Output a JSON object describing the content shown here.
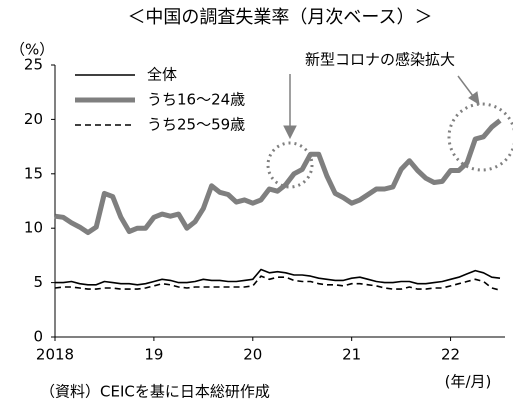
{
  "chart_data": {
    "type": "line",
    "title": "＜中国の調査失業率（月次ベース）＞",
    "y_unit_label": "（%）",
    "x_unit_label": "(年/月)",
    "annotation": "新型コロナの感染拡大",
    "source": "（資料）CEICを基に日本総研作成",
    "categories": [
      "2018",
      null,
      null,
      null,
      null,
      null,
      null,
      null,
      null,
      null,
      null,
      null,
      "19",
      null,
      null,
      null,
      null,
      null,
      null,
      null,
      null,
      null,
      null,
      null,
      "20",
      null,
      null,
      null,
      null,
      null,
      null,
      null,
      null,
      null,
      null,
      null,
      "21",
      null,
      null,
      null,
      null,
      null,
      null,
      null,
      null,
      null,
      null,
      null,
      "22",
      null,
      null,
      null,
      null,
      null,
      null
    ],
    "series": [
      {
        "name": "全体",
        "color": "#000000",
        "width": 1.6,
        "dash": false,
        "values": [
          5.0,
          5.0,
          5.1,
          4.9,
          4.8,
          4.8,
          5.1,
          5.0,
          4.9,
          4.9,
          4.8,
          4.9,
          5.1,
          5.3,
          5.2,
          5.0,
          5.0,
          5.1,
          5.3,
          5.2,
          5.2,
          5.1,
          5.1,
          5.2,
          5.3,
          6.2,
          5.9,
          6.0,
          5.9,
          5.7,
          5.7,
          5.6,
          5.4,
          5.3,
          5.2,
          5.2,
          5.4,
          5.5,
          5.3,
          5.1,
          5.0,
          5.0,
          5.1,
          5.1,
          4.9,
          4.9,
          5.0,
          5.1,
          5.3,
          5.5,
          5.8,
          6.1,
          5.9,
          5.5,
          5.4
        ]
      },
      {
        "name": "うち16～24歳",
        "color": "#7f7f7f",
        "width": 5,
        "dash": false,
        "values": [
          11.1,
          11.0,
          10.5,
          10.1,
          9.6,
          10.1,
          13.2,
          12.9,
          11.0,
          9.7,
          10.0,
          10.0,
          11.0,
          11.3,
          11.1,
          11.3,
          10.0,
          10.6,
          11.8,
          13.9,
          13.3,
          13.1,
          12.4,
          12.6,
          12.3,
          12.6,
          13.6,
          13.4,
          14.0,
          15.0,
          15.4,
          16.8,
          16.8,
          14.8,
          13.2,
          12.8,
          12.3,
          12.6,
          13.1,
          13.6,
          13.6,
          13.8,
          15.4,
          16.2,
          15.3,
          14.6,
          14.2,
          14.3,
          15.3,
          15.3,
          16.0,
          18.2,
          18.4,
          19.3,
          19.9
        ]
      },
      {
        "name": "うち25～59歳",
        "color": "#000000",
        "width": 1.6,
        "dash": true,
        "values": [
          4.5,
          4.6,
          4.6,
          4.5,
          4.4,
          4.4,
          4.5,
          4.5,
          4.4,
          4.4,
          4.4,
          4.5,
          4.7,
          4.9,
          4.8,
          4.6,
          4.5,
          4.6,
          4.6,
          4.6,
          4.6,
          4.6,
          4.6,
          4.6,
          4.7,
          5.6,
          5.3,
          5.5,
          5.5,
          5.2,
          5.1,
          5.1,
          4.9,
          4.8,
          4.8,
          4.7,
          4.9,
          4.9,
          4.8,
          4.7,
          4.5,
          4.4,
          4.4,
          4.6,
          4.4,
          4.4,
          4.5,
          4.5,
          4.7,
          4.9,
          5.1,
          5.3,
          5.1,
          4.5,
          4.3
        ]
      }
    ],
    "ylim": [
      0,
      25
    ],
    "yticks": [
      0,
      5,
      10,
      15,
      20,
      25
    ],
    "grid": false,
    "legend": "upper left"
  }
}
